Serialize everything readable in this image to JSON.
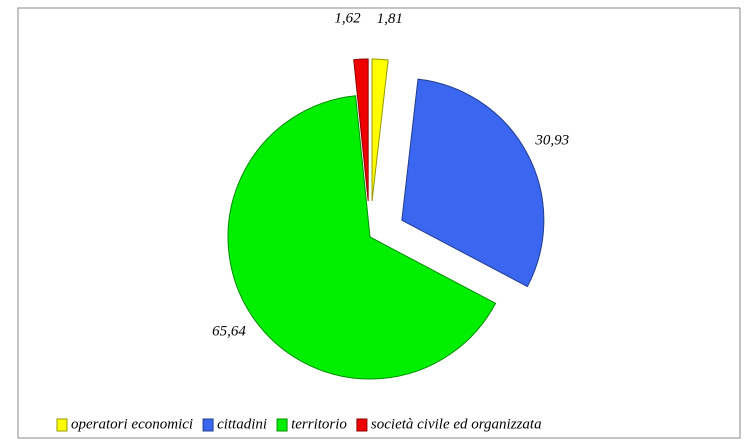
{
  "chart_data": {
    "type": "pie",
    "categories": [
      "operatori economici",
      "cittadini",
      "territorio",
      "società civile ed organizzata"
    ],
    "values": [
      1.81,
      30.93,
      65.64,
      1.62
    ],
    "value_labels": [
      "1,81",
      "30,93",
      "65,64",
      "1,62"
    ],
    "colors": [
      "#ffff00",
      "#3a66f0",
      "#00ee00",
      "#ee0000"
    ]
  }
}
